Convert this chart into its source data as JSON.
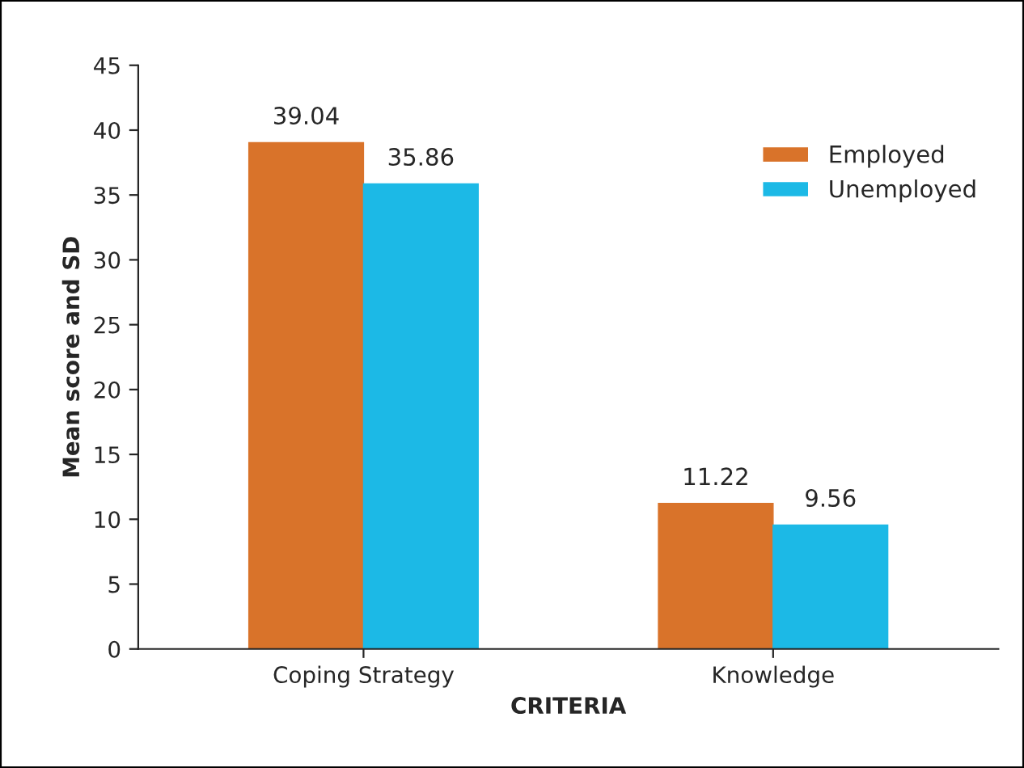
{
  "chart_data": {
    "type": "bar",
    "categories": [
      "Coping Strategy",
      "Knowledge"
    ],
    "series": [
      {
        "name": "Employed",
        "color": "#d9732a",
        "values": [
          39.04,
          11.22
        ]
      },
      {
        "name": "Unemployed",
        "color": "#1cb9e6",
        "values": [
          35.86,
          9.56
        ]
      }
    ],
    "xlabel": "CRITERIA",
    "ylabel": "Mean score and SD",
    "ylim": [
      0,
      45
    ],
    "yticks": [
      0,
      5,
      10,
      15,
      20,
      25,
      30,
      35,
      40,
      45
    ],
    "data_labels": true,
    "legend": "top right",
    "grid": false
  }
}
